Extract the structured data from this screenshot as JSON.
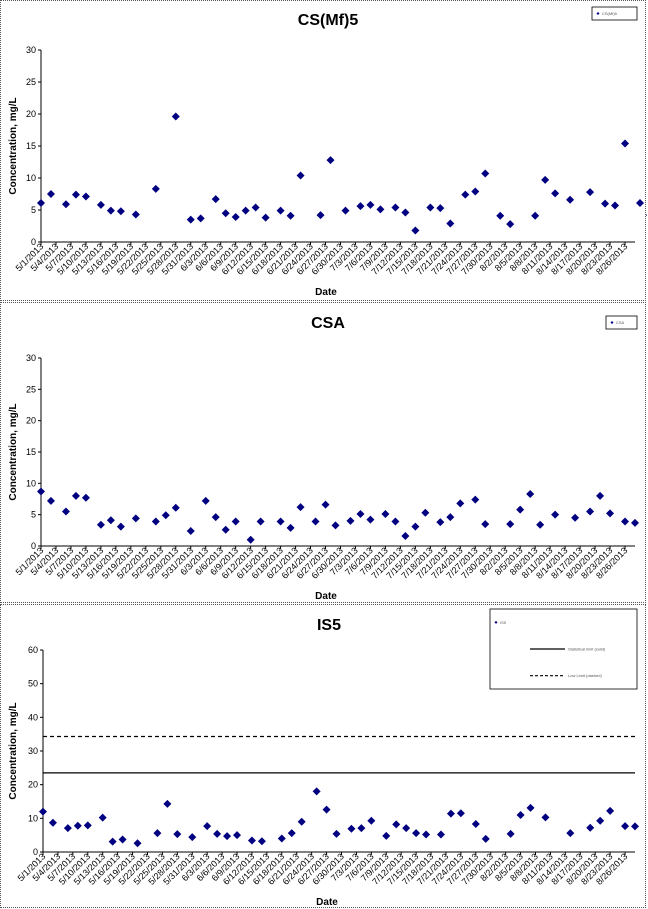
{
  "chart_data": [
    {
      "type": "scatter",
      "title": "CS(Mf)5",
      "xlabel": "Date",
      "ylabel": "Concentration, mg/L",
      "ylim": [
        0,
        30
      ],
      "yticks": [
        0,
        5,
        10,
        15,
        20,
        25,
        30
      ],
      "legend": {
        "placement": "top-right",
        "entries": [
          "CS(Mf)5"
        ]
      },
      "x_ticks": [
        "5/1/2013",
        "5/4/2013",
        "5/7/2013",
        "5/10/2013",
        "5/13/2013",
        "5/16/2013",
        "5/19/2013",
        "5/22/2013",
        "5/25/2013",
        "5/28/2013",
        "5/31/2013",
        "6/3/2013",
        "6/6/2013",
        "6/9/2013",
        "6/12/2013",
        "6/15/2013",
        "6/18/2013",
        "6/21/2013",
        "6/24/2013",
        "6/27/2013",
        "6/30/2013",
        "7/3/2013",
        "7/6/2013",
        "7/9/2013",
        "7/12/2013",
        "7/15/2013",
        "7/18/2013",
        "7/21/2013",
        "7/24/2013",
        "7/27/2013",
        "7/30/2013",
        "8/2/2013",
        "8/5/2013",
        "8/8/2013",
        "8/11/2013",
        "8/14/2013",
        "8/17/2013",
        "8/20/2013",
        "8/23/2013",
        "8/26/2013"
      ],
      "x_range": [
        "5/1/2013",
        "8/28/2013"
      ],
      "series": [
        {
          "color": "#000080",
          "x": [
            "5/1/2013",
            "5/3/2013",
            "5/6/2013",
            "5/8/2013",
            "5/10/2013",
            "5/13/2013",
            "5/15/2013",
            "5/17/2013",
            "5/20/2013",
            "5/24/2013",
            "5/28/2013",
            "5/31/2013",
            "6/2/2013",
            "6/5/2013",
            "6/7/2013",
            "6/9/2013",
            "6/11/2013",
            "6/13/2013",
            "6/15/2013",
            "6/18/2013",
            "6/20/2013",
            "6/22/2013",
            "6/26/2013",
            "6/28/2013",
            "7/1/2013",
            "7/4/2013",
            "7/6/2013",
            "7/8/2013",
            "7/11/2013",
            "7/13/2013",
            "7/15/2013",
            "7/18/2013",
            "7/20/2013",
            "7/22/2013",
            "7/25/2013",
            "7/27/2013",
            "7/29/2013",
            "8/1/2013",
            "8/3/2013",
            "8/8/2013",
            "8/10/2013",
            "8/12/2013",
            "8/15/2013",
            "8/19/2013",
            "8/22/2013",
            "8/24/2013",
            "8/26/2013",
            "8/29/2013",
            "8/31/2013"
          ],
          "y": [
            6.1,
            7.5,
            5.9,
            7.4,
            7.1,
            5.8,
            4.9,
            4.8,
            4.3,
            8.3,
            19.6,
            3.5,
            3.7,
            6.7,
            4.5,
            3.9,
            4.9,
            5.4,
            3.8,
            4.9,
            4.1,
            10.4,
            4.2,
            12.8,
            4.9,
            5.6,
            5.8,
            5.1,
            5.4,
            4.6,
            1.8,
            5.4,
            5.3,
            2.9,
            7.4,
            7.9,
            10.7,
            4.1,
            2.8,
            4.1,
            9.7,
            7.6,
            6.6,
            7.8,
            6.0,
            5.7,
            15.4,
            6.1,
            4.2
          ]
        }
      ]
    },
    {
      "type": "scatter",
      "title": "CSA",
      "xlabel": "Date",
      "ylabel": "Concentration, mg/L",
      "ylim": [
        0,
        30
      ],
      "yticks": [
        0,
        5,
        10,
        15,
        20,
        25,
        30
      ],
      "legend": {
        "placement": "top-right",
        "entries": [
          "CSA"
        ]
      },
      "x_ticks": [
        "5/1/2013",
        "5/4/2013",
        "5/7/2013",
        "5/10/2013",
        "5/13/2013",
        "5/16/2013",
        "5/19/2013",
        "5/22/2013",
        "5/25/2013",
        "5/28/2013",
        "5/31/2013",
        "6/3/2013",
        "6/6/2013",
        "6/9/2013",
        "6/12/2013",
        "6/15/2013",
        "6/18/2013",
        "6/21/2013",
        "6/24/2013",
        "6/27/2013",
        "6/30/2013",
        "7/3/2013",
        "7/6/2013",
        "7/9/2013",
        "7/12/2013",
        "7/15/2013",
        "7/18/2013",
        "7/21/2013",
        "7/24/2013",
        "7/27/2013",
        "7/30/2013",
        "8/2/2013",
        "8/5/2013",
        "8/8/2013",
        "8/11/2013",
        "8/14/2013",
        "8/17/2013",
        "8/20/2013",
        "8/23/2013",
        "8/26/2013"
      ],
      "x_range": [
        "5/1/2013",
        "8/28/2013"
      ],
      "series": [
        {
          "color": "#000080",
          "x": [
            "5/1/2013",
            "5/3/2013",
            "5/6/2013",
            "5/8/2013",
            "5/10/2013",
            "5/13/2013",
            "5/15/2013",
            "5/17/2013",
            "5/20/2013",
            "5/24/2013",
            "5/26/2013",
            "5/28/2013",
            "5/31/2013",
            "6/3/2013",
            "6/5/2013",
            "6/7/2013",
            "6/9/2013",
            "6/12/2013",
            "6/14/2013",
            "6/18/2013",
            "6/20/2013",
            "6/22/2013",
            "6/25/2013",
            "6/27/2013",
            "6/29/2013",
            "7/2/2013",
            "7/4/2013",
            "7/6/2013",
            "7/9/2013",
            "7/11/2013",
            "7/13/2013",
            "7/15/2013",
            "7/17/2013",
            "7/20/2013",
            "7/22/2013",
            "7/24/2013",
            "7/27/2013",
            "7/29/2013",
            "8/3/2013",
            "8/5/2013",
            "8/7/2013",
            "8/9/2013",
            "8/12/2013",
            "8/16/2013",
            "8/19/2013",
            "8/21/2013",
            "8/23/2013",
            "8/26/2013",
            "8/28/2013"
          ],
          "y": [
            8.7,
            7.2,
            5.5,
            8.0,
            7.7,
            3.4,
            4.1,
            3.1,
            4.4,
            3.9,
            4.9,
            6.1,
            2.4,
            7.2,
            4.6,
            2.6,
            3.9,
            1.0,
            3.9,
            3.9,
            2.9,
            6.2,
            3.9,
            6.6,
            3.3,
            4.0,
            5.1,
            4.2,
            5.1,
            3.9,
            1.6,
            3.1,
            5.3,
            3.8,
            4.6,
            6.8,
            7.4,
            3.5,
            3.5,
            5.8,
            8.3,
            3.4,
            5.0,
            4.5,
            5.5,
            8.0,
            5.2,
            3.9,
            3.7
          ]
        }
      ]
    },
    {
      "type": "scatter",
      "title": "IS5",
      "xlabel": "Date",
      "ylabel": "Concentration, mg/L",
      "ylim": [
        0,
        60
      ],
      "yticks": [
        0,
        10,
        20,
        30,
        40,
        50,
        60
      ],
      "legend": {
        "placement": "top-right",
        "entries": [
          "IS5",
          "Statistical limit (solid)",
          "Low Limit (dashed)"
        ]
      },
      "x_ticks": [
        "5/1/2013",
        "5/4/2013",
        "5/7/2013",
        "5/10/2013",
        "5/13/2013",
        "5/16/2013",
        "5/19/2013",
        "5/22/2013",
        "5/25/2013",
        "5/28/2013",
        "5/31/2013",
        "6/3/2013",
        "6/6/2013",
        "6/9/2013",
        "6/12/2013",
        "6/15/2013",
        "6/18/2013",
        "6/21/2013",
        "6/24/2013",
        "6/27/2013",
        "6/30/2013",
        "7/3/2013",
        "7/6/2013",
        "7/9/2013",
        "7/12/2013",
        "7/15/2013",
        "7/18/2013",
        "7/21/2013",
        "7/24/2013",
        "7/27/2013",
        "7/30/2013",
        "8/2/2013",
        "8/5/2013",
        "8/8/2013",
        "8/11/2013",
        "8/14/2013",
        "8/17/2013",
        "8/20/2013",
        "8/23/2013",
        "8/26/2013"
      ],
      "x_range": [
        "5/1/2013",
        "8/28/2013"
      ],
      "reference_lines": [
        {
          "style": "solid",
          "y": 23.5
        },
        {
          "style": "dashed",
          "y": 34.3
        }
      ],
      "series": [
        {
          "color": "#000080",
          "x": [
            "5/1/2013",
            "5/3/2013",
            "5/6/2013",
            "5/8/2013",
            "5/10/2013",
            "5/13/2013",
            "5/15/2013",
            "5/17/2013",
            "5/20/2013",
            "5/24/2013",
            "5/26/2013",
            "5/28/2013",
            "5/31/2013",
            "6/3/2013",
            "6/5/2013",
            "6/7/2013",
            "6/9/2013",
            "6/12/2013",
            "6/14/2013",
            "6/18/2013",
            "6/20/2013",
            "6/22/2013",
            "6/25/2013",
            "6/27/2013",
            "6/29/2013",
            "7/2/2013",
            "7/4/2013",
            "7/6/2013",
            "7/9/2013",
            "7/11/2013",
            "7/13/2013",
            "7/15/2013",
            "7/17/2013",
            "7/20/2013",
            "7/22/2013",
            "7/24/2013",
            "7/27/2013",
            "7/29/2013",
            "8/3/2013",
            "8/5/2013",
            "8/7/2013",
            "8/10/2013",
            "8/15/2013",
            "8/19/2013",
            "8/21/2013",
            "8/23/2013",
            "8/26/2013",
            "8/28/2013"
          ],
          "y": [
            12.0,
            8.7,
            7.1,
            7.8,
            7.9,
            10.2,
            3.1,
            3.7,
            2.6,
            5.6,
            14.3,
            5.3,
            4.4,
            7.7,
            5.4,
            4.7,
            5.0,
            3.4,
            3.2,
            4.0,
            5.6,
            9.0,
            18.0,
            12.6,
            5.4,
            6.9,
            7.1,
            9.3,
            4.8,
            8.2,
            7.1,
            5.6,
            5.2,
            5.2,
            11.4,
            11.5,
            8.3,
            3.9,
            5.4,
            11.0,
            13.1,
            10.3,
            5.6,
            7.2,
            9.3,
            12.2,
            7.7,
            7.6
          ]
        }
      ]
    }
  ]
}
